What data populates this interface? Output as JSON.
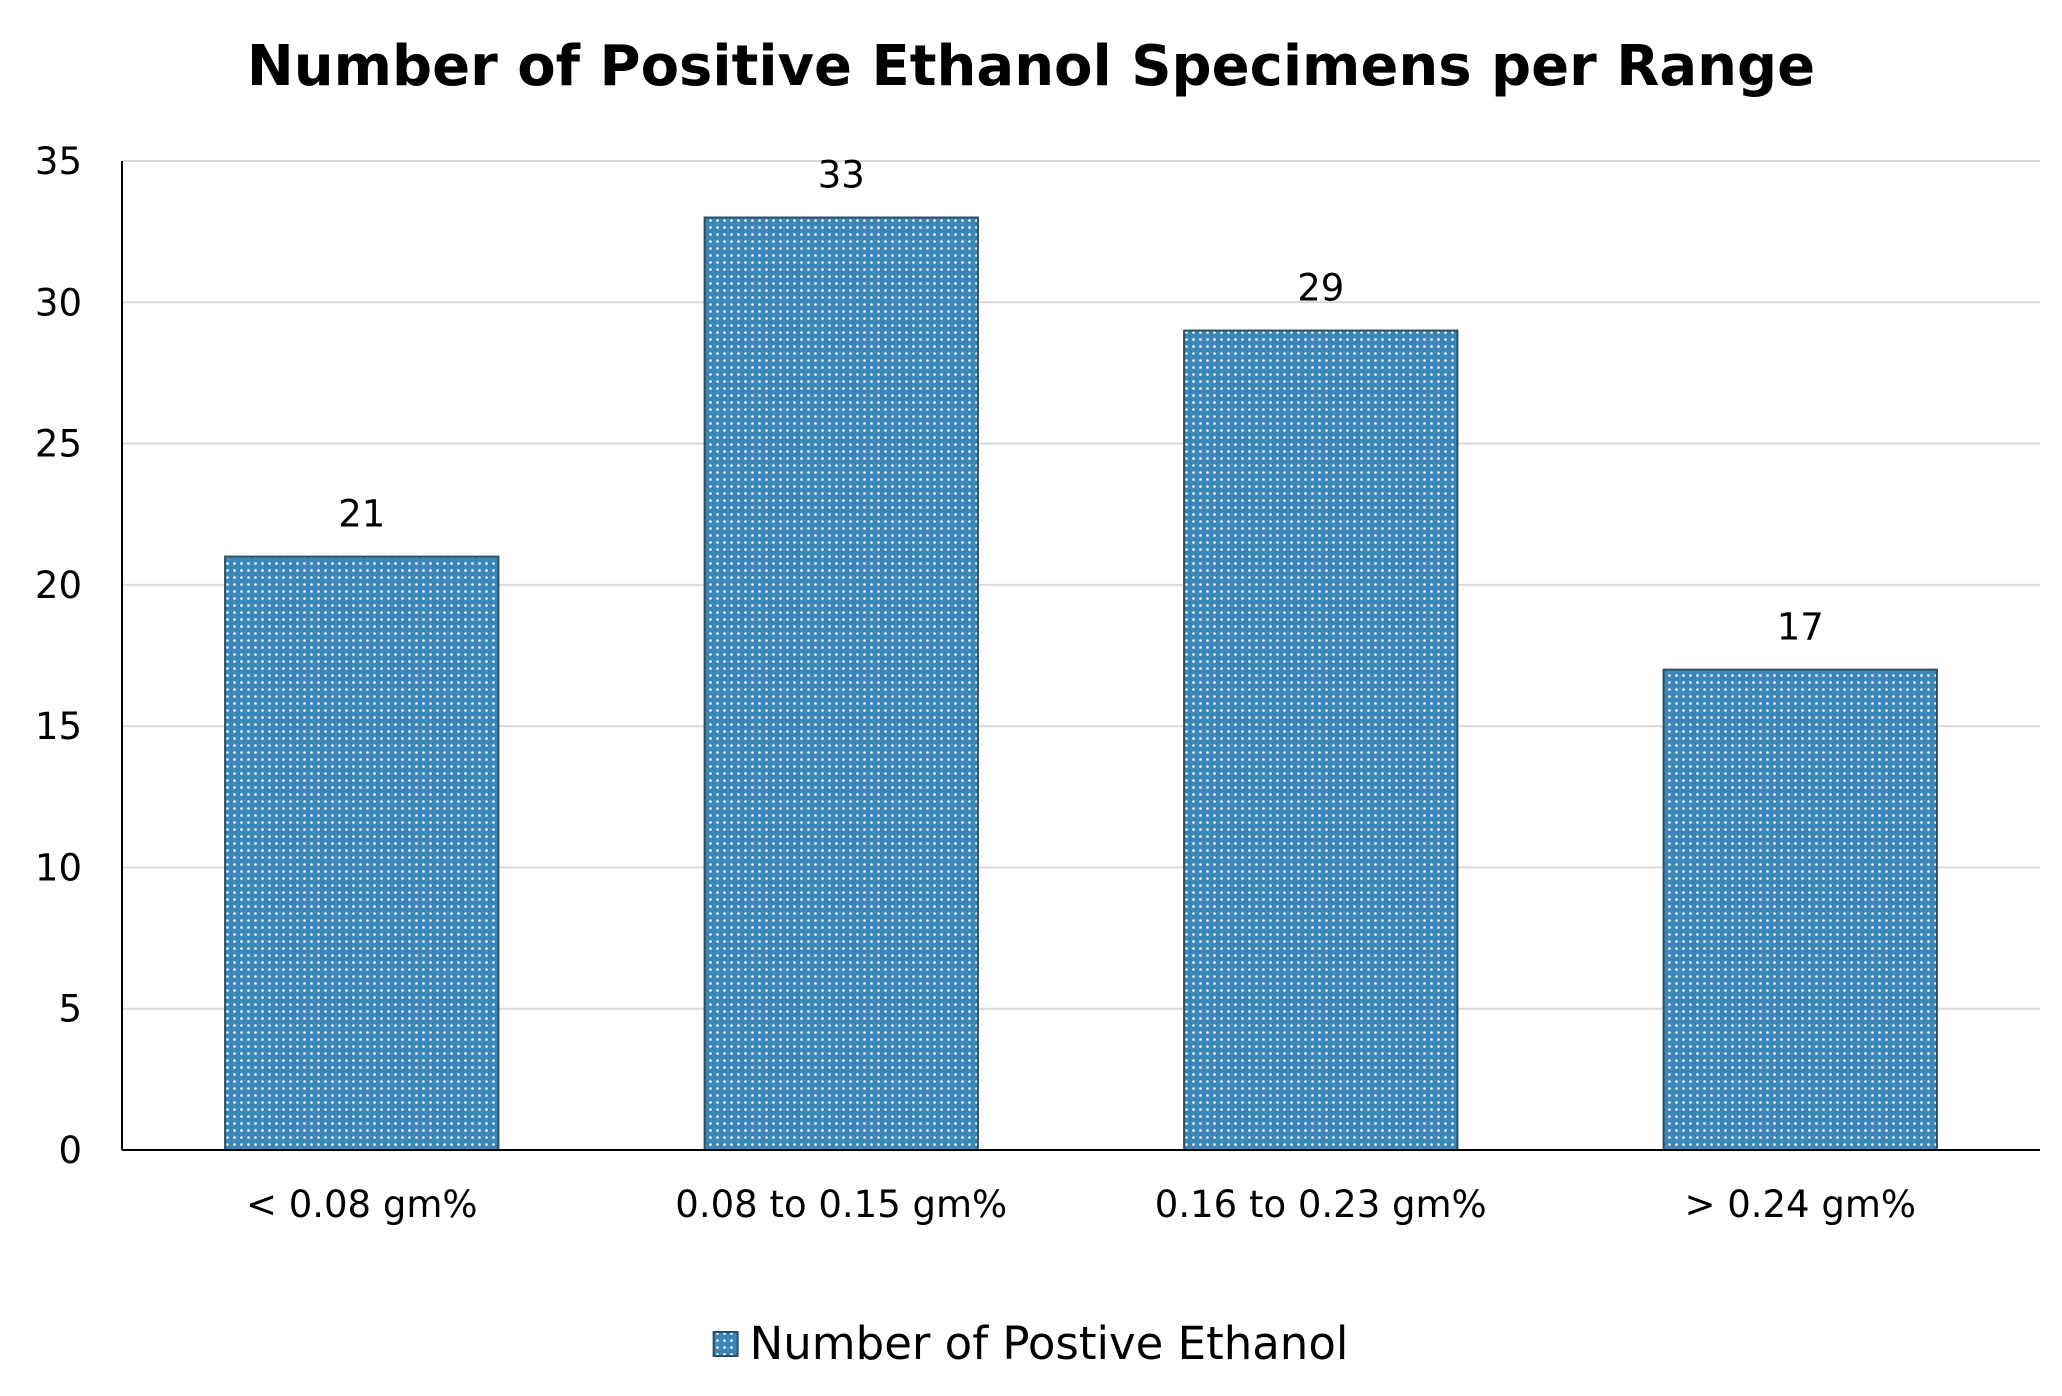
{
  "chart_data": {
    "type": "bar",
    "title": "Number of Positive Ethanol Specimens per Range",
    "xlabel": "",
    "ylabel": "",
    "categories": [
      "< 0.08 gm%",
      "0.08 to 0.15 gm%",
      "0.16 to 0.23 gm%",
      "> 0.24 gm%"
    ],
    "series": [
      {
        "name": "Number of Postive Ethanol",
        "values": [
          21,
          33,
          29,
          17
        ],
        "color": "#3a86b8"
      }
    ],
    "ylim": [
      0,
      35
    ],
    "yticks": [
      "0",
      "5",
      "10",
      "15",
      "20",
      "25",
      "30",
      "35"
    ],
    "grid": true,
    "legend_position": "bottom",
    "data_labels": true,
    "bar_pattern": "dotted"
  }
}
